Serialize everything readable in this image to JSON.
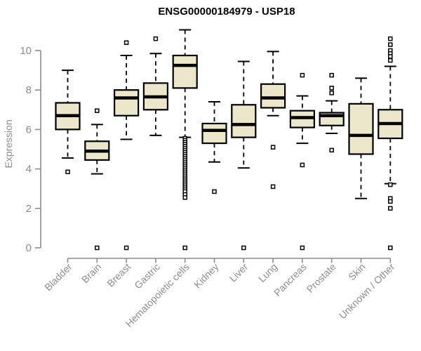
{
  "chart_data": {
    "type": "boxplot",
    "title": "ENSG00000184979 - USP18",
    "xlabel": "",
    "ylabel": "Expression",
    "yticks": [
      0,
      2,
      4,
      6,
      8,
      10
    ],
    "ylim": [
      0,
      11.2
    ],
    "grid": false,
    "legend": "none",
    "categories": [
      "Bladder",
      "Brain",
      "Breast",
      "Gastric",
      "Hematopoietic cells",
      "Kidney",
      "Liver",
      "Lung",
      "Pancreas",
      "Prostate",
      "Skin",
      "Unknown / Other"
    ],
    "series": [
      {
        "label": "Bladder",
        "whislo": 4.55,
        "q1": 6.0,
        "med": 6.7,
        "q3": 7.35,
        "whishi": 9.0,
        "outliers": [
          3.85
        ]
      },
      {
        "label": "Brain",
        "whislo": 3.75,
        "q1": 4.45,
        "med": 4.9,
        "q3": 5.4,
        "whishi": 6.25,
        "outliers": [
          6.95,
          0
        ]
      },
      {
        "label": "Breast",
        "whislo": 5.5,
        "q1": 6.7,
        "med": 7.6,
        "q3": 8.0,
        "whishi": 9.75,
        "outliers": [
          10.4,
          0
        ]
      },
      {
        "label": "Gastric",
        "whislo": 5.7,
        "q1": 7.0,
        "med": 7.65,
        "q3": 8.35,
        "whishi": 9.85,
        "outliers": [
          10.6
        ]
      },
      {
        "label": "Hematopoietic cells",
        "whislo": 5.6,
        "q1": 8.1,
        "med": 9.25,
        "q3": 9.75,
        "whishi": 11.05,
        "outliers": [
          5.55,
          5.45,
          5.35,
          5.25,
          5.15,
          5.05,
          4.95,
          4.85,
          4.75,
          4.65,
          4.55,
          4.45,
          4.35,
          4.25,
          4.15,
          4.05,
          3.95,
          3.85,
          3.75,
          3.65,
          3.55,
          3.45,
          3.35,
          3.25,
          3.15,
          3.05,
          2.95,
          2.85,
          2.7,
          2.55,
          0
        ]
      },
      {
        "label": "Kidney",
        "whislo": 4.35,
        "q1": 5.3,
        "med": 5.95,
        "q3": 6.3,
        "whishi": 7.4,
        "outliers": [
          2.85
        ]
      },
      {
        "label": "Liver",
        "whislo": 4.05,
        "q1": 5.6,
        "med": 6.25,
        "q3": 7.25,
        "whishi": 9.45,
        "outliers": [
          0
        ]
      },
      {
        "label": "Lung",
        "whislo": 6.7,
        "q1": 7.1,
        "med": 7.6,
        "q3": 8.3,
        "whishi": 9.95,
        "outliers": [
          5.1,
          3.1
        ]
      },
      {
        "label": "Pancreas",
        "whislo": 5.3,
        "q1": 6.1,
        "med": 6.6,
        "q3": 6.95,
        "whishi": 7.7,
        "outliers": [
          8.75,
          4.2,
          0
        ]
      },
      {
        "label": "Prostate",
        "whislo": 5.8,
        "q1": 6.2,
        "med": 6.7,
        "q3": 6.85,
        "whishi": 7.45,
        "outliers": [
          8.75,
          8.1,
          7.85,
          4.95
        ]
      },
      {
        "label": "Skin",
        "whislo": 2.5,
        "q1": 4.75,
        "med": 5.7,
        "q3": 7.3,
        "whishi": 8.6,
        "outliers": []
      },
      {
        "label": "Unknown / Other",
        "whislo": 3.25,
        "q1": 5.55,
        "med": 6.3,
        "q3": 7.0,
        "whishi": 9.2,
        "outliers": [
          10.6,
          10.3,
          10.0,
          9.85,
          9.7,
          9.5,
          3.2,
          2.5,
          2.35,
          2.0,
          0
        ]
      }
    ],
    "colors": {
      "box_fill": "#ECE7CA",
      "box_stroke": "#000000",
      "median": "#000000",
      "whisker": "#000000",
      "outlier_fill": "#ffffff",
      "outlier_stroke": "#000000",
      "axis": "#8C8C8C",
      "tick_label": "#8C8C8C",
      "title": "#000000",
      "background": "#ffffff"
    }
  }
}
